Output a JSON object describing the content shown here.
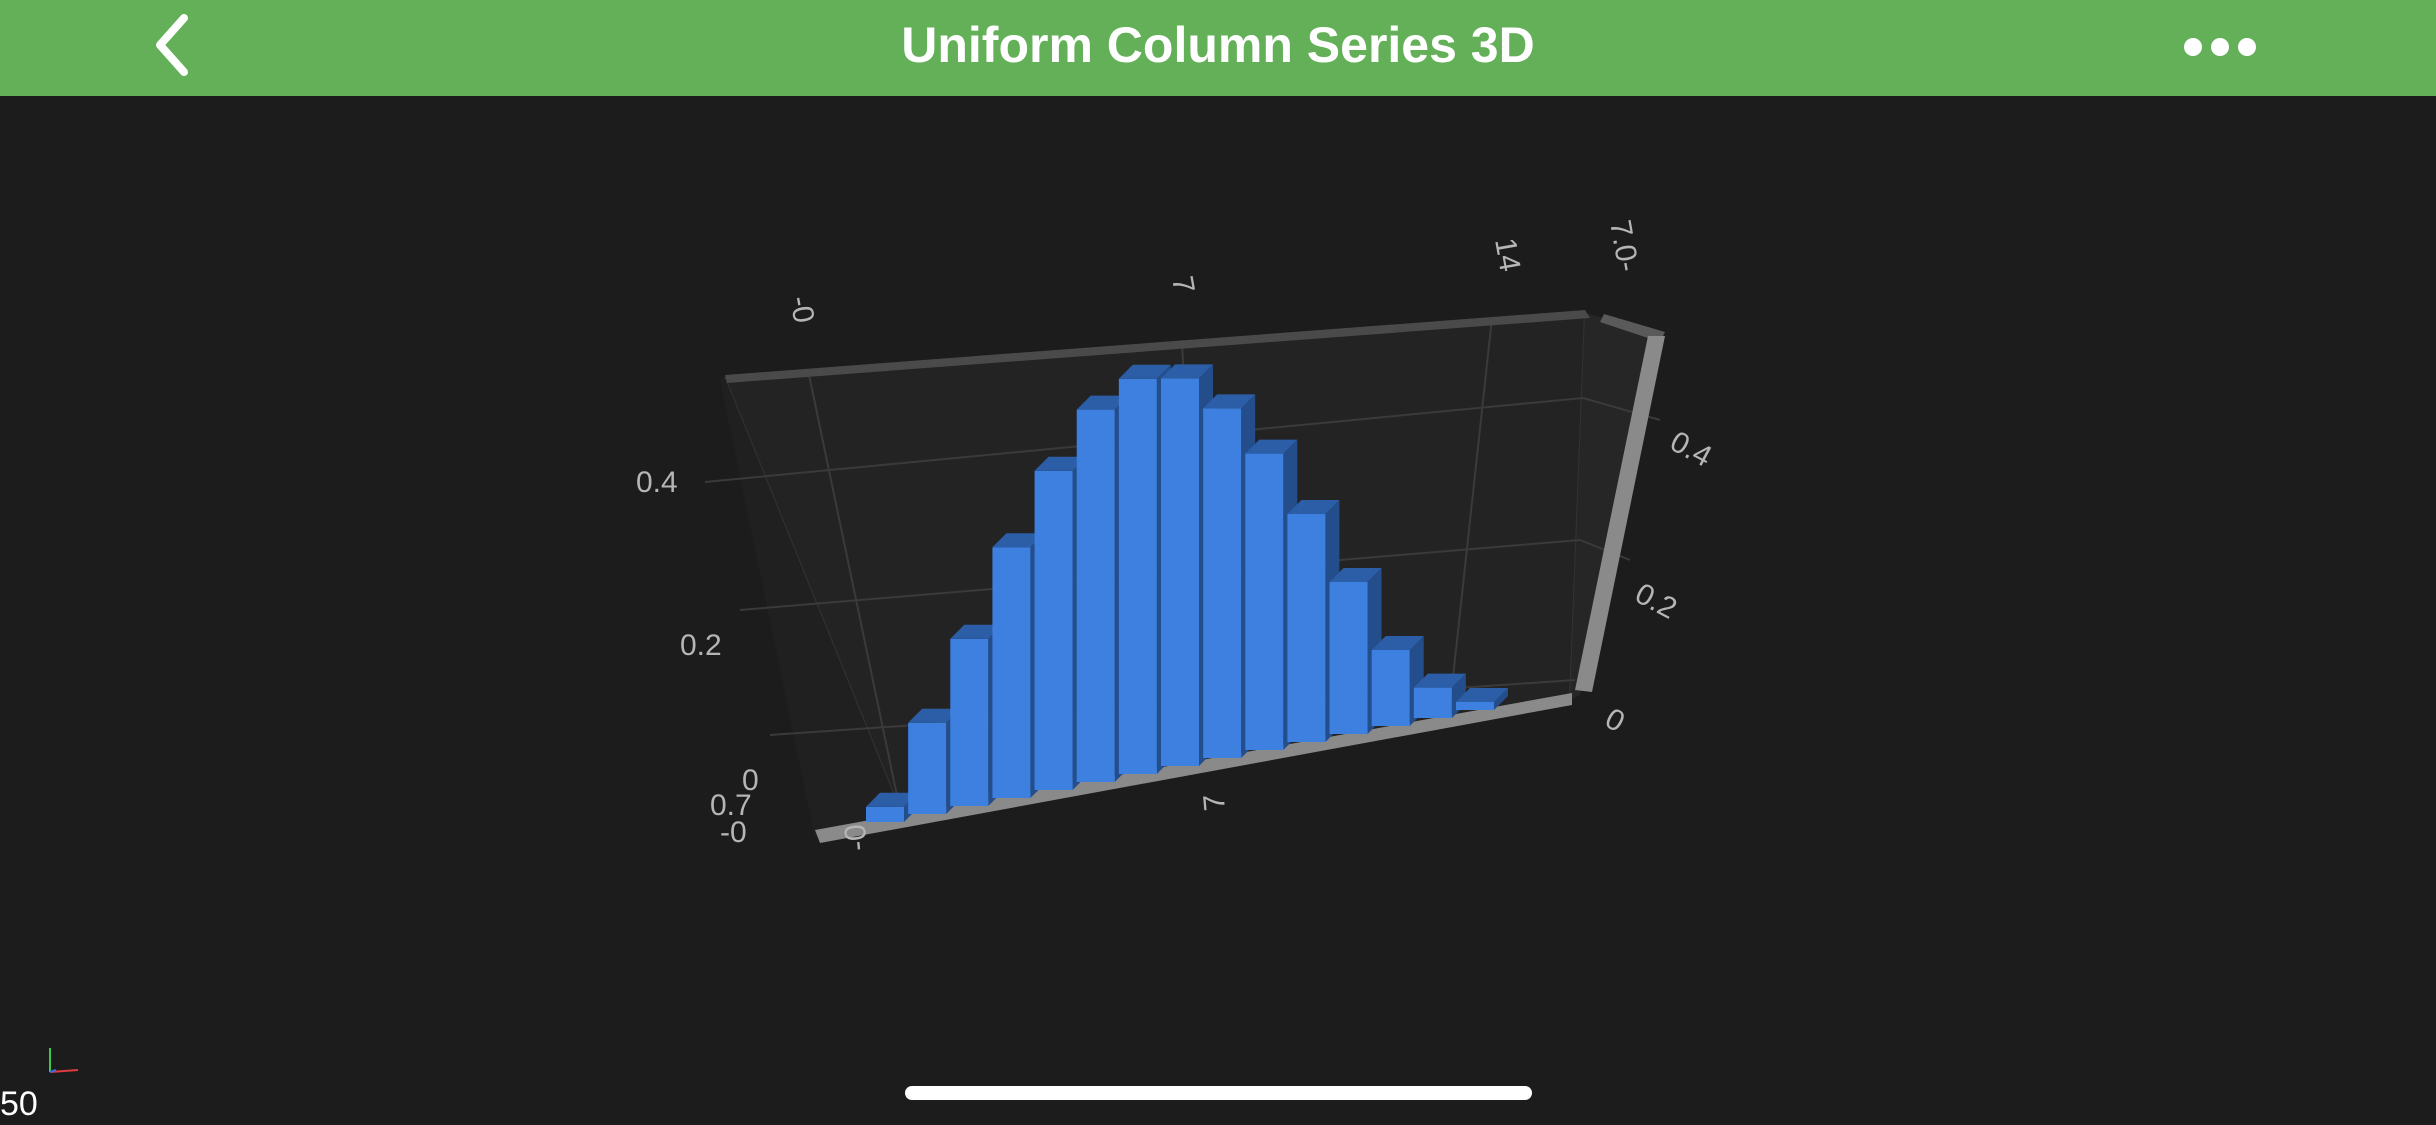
{
  "navbar": {
    "title": "Uniform Column Series 3D",
    "back_icon": "chevron-left-icon",
    "more_icon": "ellipsis-icon"
  },
  "colors": {
    "navbar": "#64b058",
    "background": "#1c1c1c",
    "column_front": "#3d80e0",
    "column_top": "#2c5ea8",
    "column_side": "#244d8c"
  },
  "chart_data": {
    "type": "bar",
    "title": "",
    "x": [
      1,
      2,
      3,
      4,
      5,
      6,
      7,
      8,
      9,
      10,
      11,
      12,
      13,
      14,
      15
    ],
    "values": [
      0.02,
      0.12,
      0.22,
      0.33,
      0.42,
      0.49,
      0.52,
      0.51,
      0.46,
      0.39,
      0.3,
      0.2,
      0.1,
      0.04,
      0.0
    ],
    "ylim": [
      0,
      0.5
    ],
    "axis_ticks": {
      "x_back": [
        "-0",
        "7",
        "14",
        "7.0-"
      ],
      "x_front": [
        "-0",
        "7"
      ],
      "y_left": [
        "0.4",
        "0.2"
      ],
      "y_right": [
        "0.4",
        "0.2",
        "0"
      ],
      "z_left": [
        "0",
        "0.7",
        "-0"
      ]
    },
    "grid": true
  },
  "status": {
    "fps": "50"
  }
}
